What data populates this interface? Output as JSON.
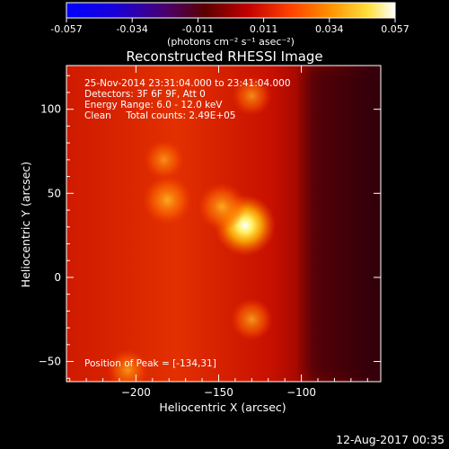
{
  "chart_data": {
    "type": "heatmap",
    "title": "Reconstructed RHESSI Image",
    "xlabel": "Heliocentric X (arcsec)",
    "ylabel": "Heliocentric Y (arcsec)",
    "xlim": [
      -242,
      -52
    ],
    "ylim": [
      -62,
      126
    ],
    "x_ticks": [
      -200,
      -150,
      -100
    ],
    "y_ticks": [
      -50,
      0,
      50,
      100
    ],
    "colorbar": {
      "unit_label": "(photons cm⁻² s⁻¹ asec⁻²)",
      "range": [
        -0.057,
        0.057
      ],
      "ticks": [
        "-0.057",
        "-0.034",
        "-0.011",
        "0.011",
        "0.034",
        "0.057"
      ]
    },
    "annotations": [
      "25-Nov-2014 23:31:04.000 to 23:41:04.000",
      "Detectors: 3F 6F 9F, Att 0",
      "Energy Range: 6.0 - 12.0 keV",
      "Clean     Total counts: 2.49E+05"
    ],
    "peak": {
      "label": "Position of Peak = [-134,31]",
      "x": -134,
      "y": 31
    },
    "sources": [
      {
        "x": -134,
        "y": 31,
        "intensity": 0.057
      },
      {
        "x": -181,
        "y": 46,
        "intensity": 0.04
      },
      {
        "x": -148,
        "y": 42,
        "intensity": 0.038
      },
      {
        "x": -130,
        "y": -25,
        "intensity": 0.03
      },
      {
        "x": -183,
        "y": 70,
        "intensity": 0.026
      },
      {
        "x": -205,
        "y": -55,
        "intensity": 0.028
      },
      {
        "x": -130,
        "y": 108,
        "intensity": 0.026
      }
    ],
    "footer_date": "12-Aug-2017 00:35"
  }
}
